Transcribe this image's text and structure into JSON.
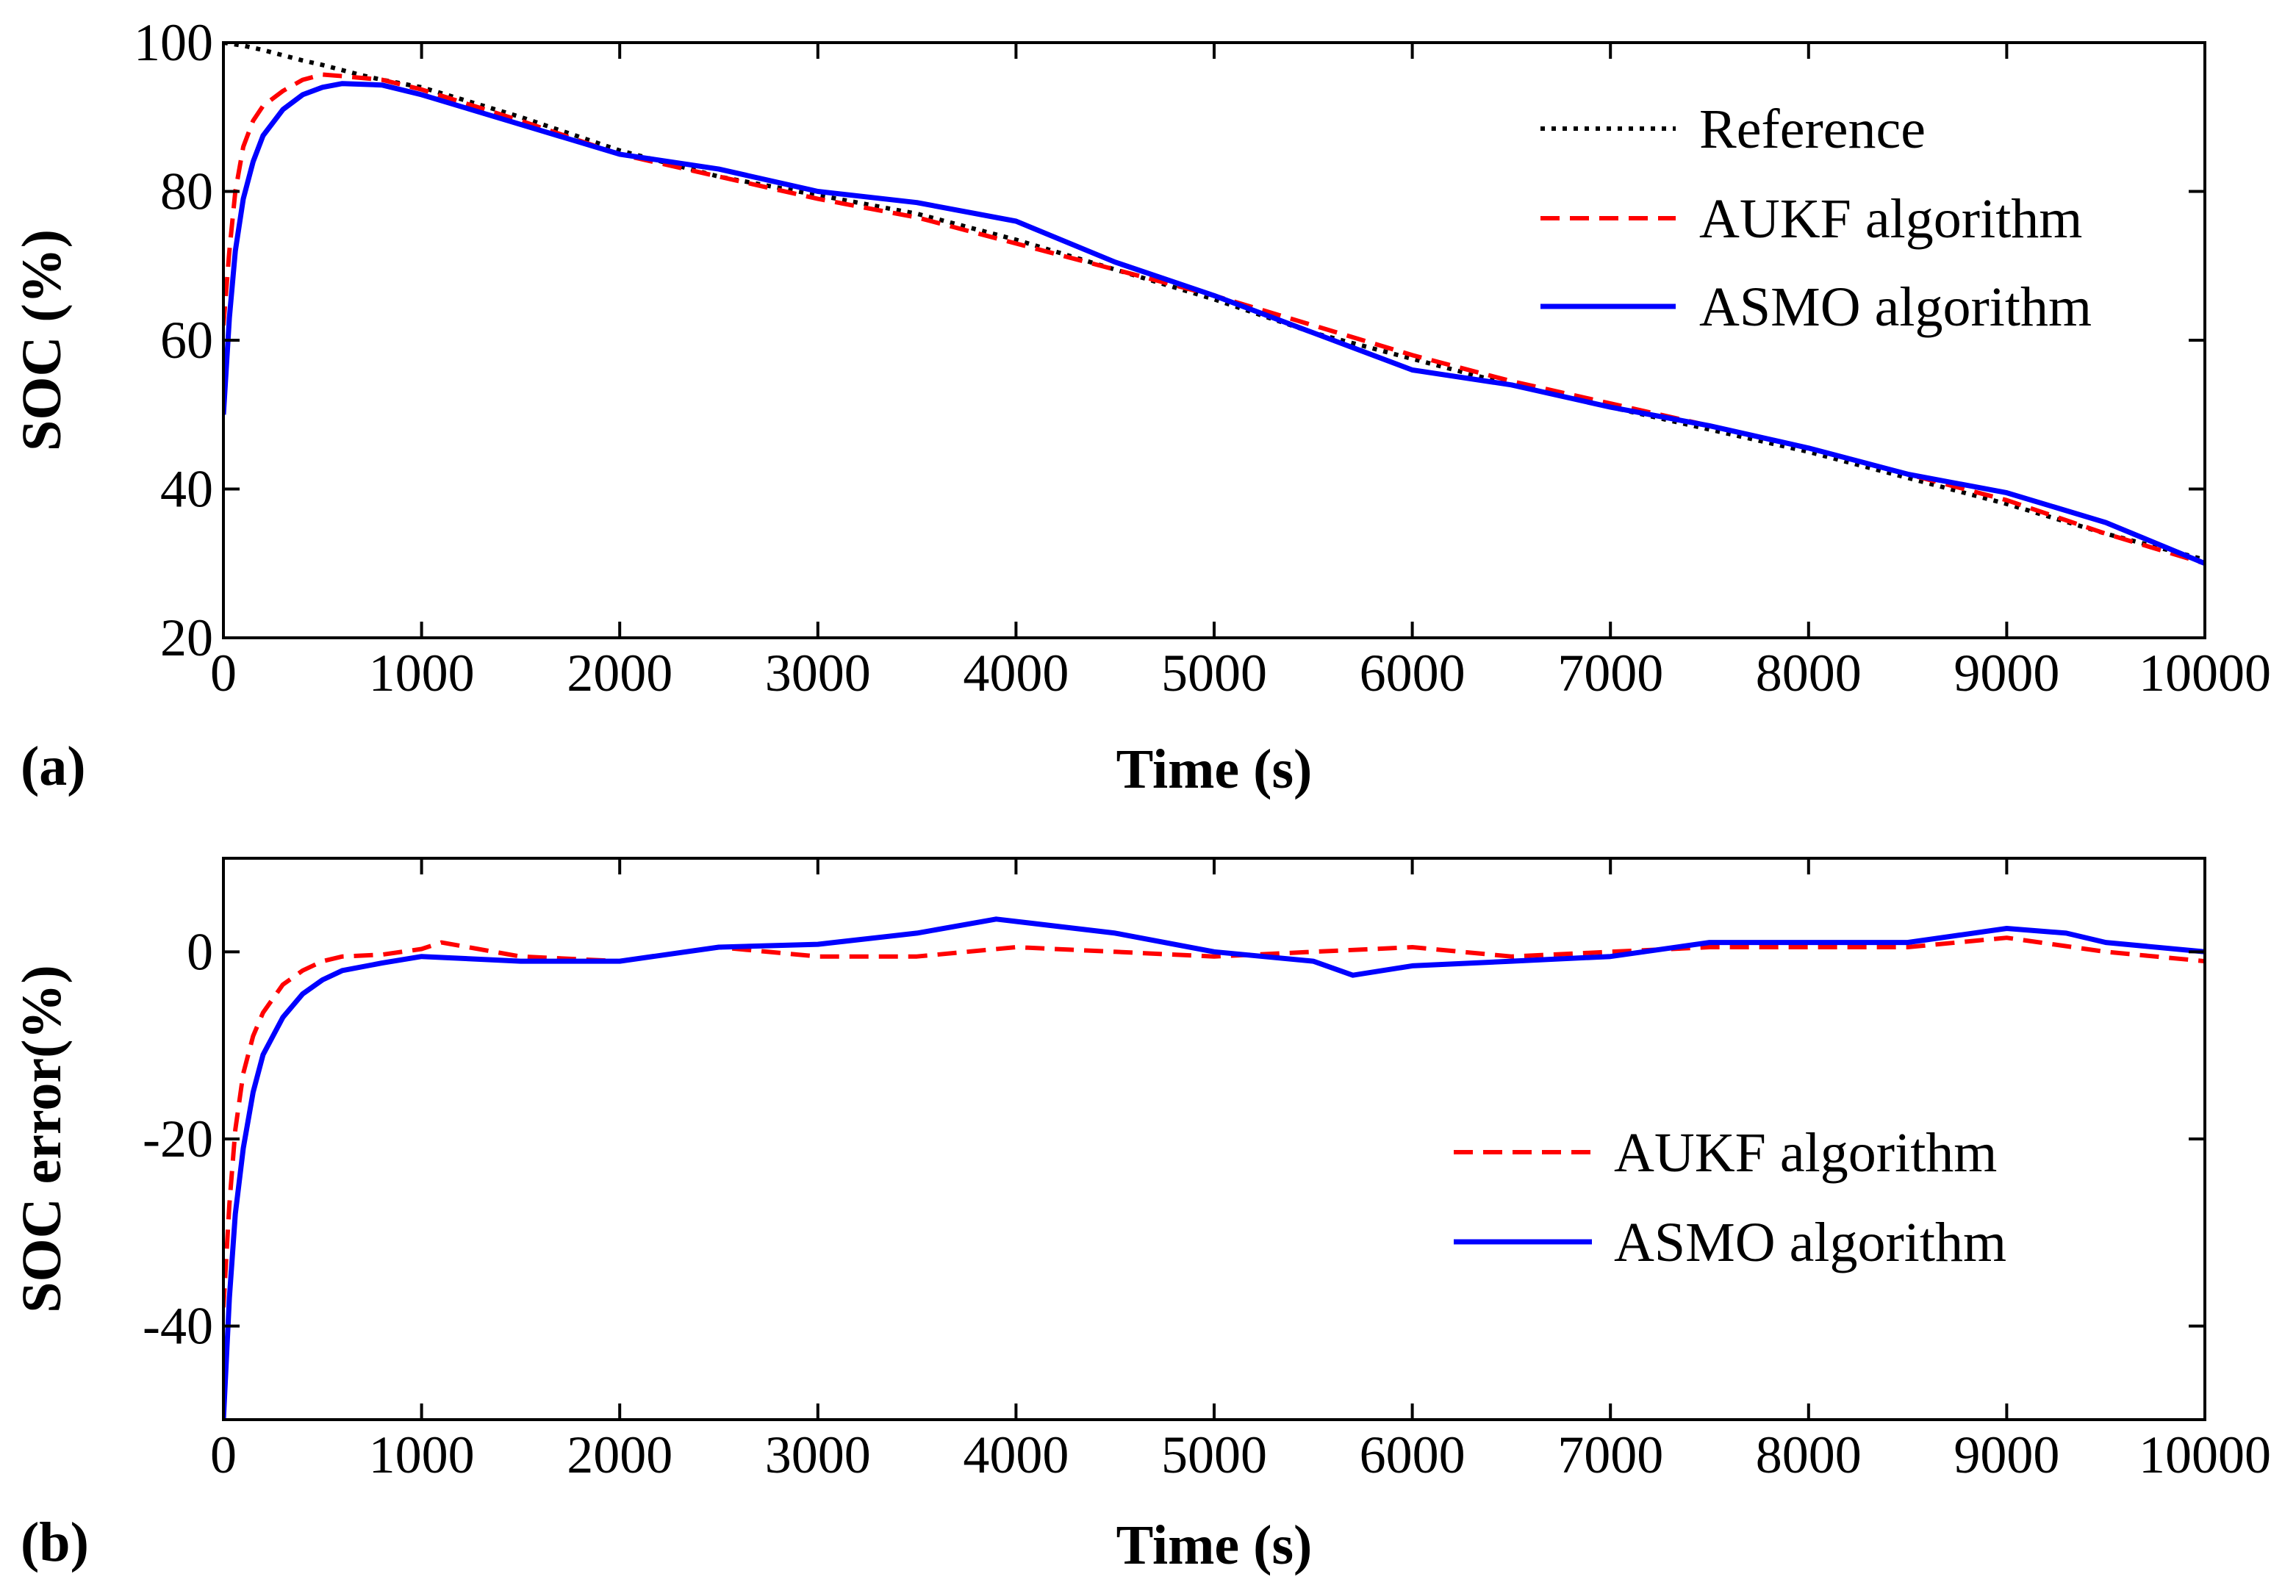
{
  "chart_data": [
    {
      "panel": "(a)",
      "type": "line",
      "xlabel": "Time (s)",
      "ylabel": "SOC (%)",
      "xlim": [
        0,
        10000
      ],
      "ylim": [
        20,
        100
      ],
      "xticks": [
        0,
        1000,
        2000,
        3000,
        4000,
        5000,
        6000,
        7000,
        8000,
        9000,
        10000
      ],
      "yticks": [
        20,
        40,
        60,
        80,
        100
      ],
      "legend_position": "top-right",
      "series": [
        {
          "name": "Reference",
          "style": "dotted",
          "color": "#000000",
          "x": [
            0,
            100,
            200,
            300,
            400,
            500,
            600,
            700,
            800,
            1000,
            1500,
            2000,
            2500,
            3000,
            3500,
            4000,
            4500,
            5000,
            5500,
            6000,
            6500,
            7000,
            7500,
            8000,
            8500,
            9000,
            9500,
            10000
          ],
          "y": [
            100,
            99.6,
            99,
            98.3,
            97.6,
            97,
            96.3,
            95.6,
            95,
            94,
            90,
            85.5,
            82,
            79.5,
            77,
            73.5,
            69.5,
            65.5,
            61,
            57.5,
            54,
            51,
            48,
            45,
            41.5,
            38,
            34,
            30.5
          ]
        },
        {
          "name": "AUKF algorithm",
          "style": "dashed",
          "color": "#ff0000",
          "x": [
            0,
            30,
            60,
            100,
            150,
            200,
            300,
            400,
            500,
            600,
            800,
            1000,
            1500,
            2000,
            2500,
            3000,
            3500,
            4000,
            4500,
            5000,
            5500,
            6000,
            6500,
            7000,
            7500,
            8000,
            8500,
            9000,
            9500,
            10000
          ],
          "y": [
            62,
            72,
            80,
            86,
            89.5,
            91.5,
            93.5,
            95,
            95.7,
            95.5,
            95,
            93.7,
            89.5,
            85,
            82,
            79,
            76.5,
            73,
            69.5,
            66,
            62,
            58,
            54.5,
            51.5,
            48.5,
            45.5,
            42,
            38.5,
            34,
            30
          ]
        },
        {
          "name": "ASMO algorithm",
          "style": "solid",
          "color": "#0000ff",
          "x": [
            0,
            30,
            60,
            100,
            150,
            200,
            300,
            400,
            500,
            600,
            800,
            1000,
            1500,
            2000,
            2500,
            3000,
            3500,
            4000,
            4500,
            5000,
            5500,
            6000,
            6500,
            7000,
            7500,
            8000,
            8500,
            9000,
            9500,
            10000
          ],
          "y": [
            50,
            63,
            72,
            79,
            84,
            87.5,
            91,
            93,
            94,
            94.5,
            94.3,
            93,
            89,
            85,
            83,
            80,
            78.5,
            76,
            70.5,
            66,
            61,
            56,
            54,
            51,
            48.5,
            45.5,
            42,
            39.5,
            35.5,
            30
          ]
        }
      ]
    },
    {
      "panel": "(b)",
      "type": "line",
      "xlabel": "Time (s)",
      "ylabel": "SOC error(%)",
      "xlim": [
        0,
        10000
      ],
      "ylim": [
        -50,
        10
      ],
      "xticks": [
        0,
        1000,
        2000,
        3000,
        4000,
        5000,
        6000,
        7000,
        8000,
        9000,
        10000
      ],
      "yticks": [
        -40,
        -20,
        0
      ],
      "legend_position": "center-right",
      "series": [
        {
          "name": "AUKF algorithm",
          "style": "dashed",
          "color": "#ff0000",
          "x": [
            0,
            30,
            60,
            100,
            150,
            200,
            300,
            400,
            500,
            600,
            800,
            1000,
            1100,
            1500,
            2000,
            2500,
            3000,
            3500,
            4000,
            4500,
            5000,
            5500,
            6000,
            6500,
            7000,
            7500,
            8000,
            8500,
            9000,
            9500,
            10000
          ],
          "y": [
            -38,
            -27,
            -19,
            -13,
            -9,
            -6.5,
            -3.5,
            -2,
            -1,
            -0.5,
            -0.3,
            0.3,
            1,
            -0.5,
            -1,
            0.5,
            -0.5,
            -0.5,
            0.5,
            0,
            -0.5,
            0,
            0.5,
            -0.5,
            0,
            0.5,
            0.5,
            0.5,
            1.5,
            0,
            -1
          ]
        },
        {
          "name": "ASMO algorithm",
          "style": "solid",
          "color": "#0000ff",
          "x": [
            0,
            30,
            60,
            100,
            150,
            200,
            300,
            400,
            500,
            600,
            800,
            1000,
            1500,
            2000,
            2500,
            3000,
            3500,
            3900,
            4500,
            5000,
            5500,
            5700,
            6000,
            6500,
            7000,
            7500,
            8000,
            8500,
            9000,
            9300,
            9500,
            10000
          ],
          "y": [
            -50,
            -37,
            -28,
            -21,
            -15,
            -11,
            -7,
            -4.5,
            -3,
            -2,
            -1.2,
            -0.5,
            -1,
            -1,
            0.5,
            0.8,
            2,
            3.5,
            2,
            0,
            -1,
            -2.5,
            -1.5,
            -1,
            -0.5,
            1,
            1,
            1,
            2.5,
            2,
            1,
            0
          ]
        }
      ]
    }
  ]
}
